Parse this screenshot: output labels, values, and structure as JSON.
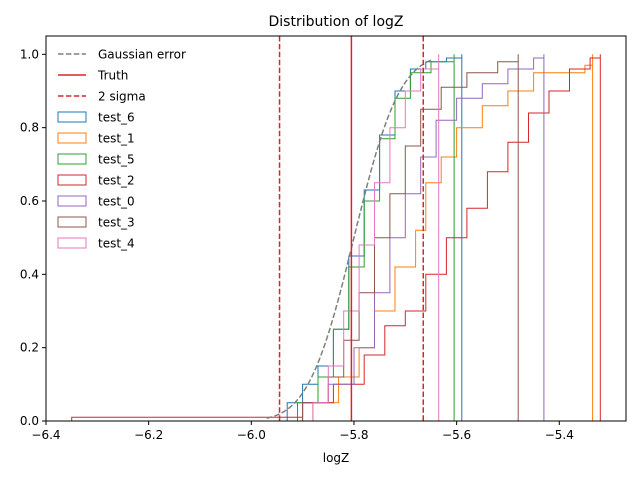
{
  "chart_data": {
    "type": "line",
    "title": "Distribution of logZ",
    "xlabel": "logZ",
    "ylabel": "",
    "xlim": [
      -6.4,
      -5.27
    ],
    "ylim": [
      0,
      1.05
    ],
    "xticks": [
      -6.4,
      -6.2,
      -6.0,
      -5.8,
      -5.6,
      -5.4
    ],
    "xtick_labels": [
      "−6.4",
      "−6.2",
      "−6.0",
      "−5.8",
      "−5.6",
      "−5.4"
    ],
    "yticks": [
      0.0,
      0.2,
      0.4,
      0.6,
      0.8,
      1.0
    ],
    "ytick_labels": [
      "0.0",
      "0.2",
      "0.4",
      "0.6",
      "0.8",
      "1.0"
    ],
    "legend_position": "top-left",
    "reference_lines": [
      {
        "name": "Truth",
        "x": -5.805,
        "color": "#d62728",
        "style": "solid"
      },
      {
        "name": "2 sigma",
        "x": -5.945,
        "color": "#d62728",
        "style": "dashed"
      },
      {
        "name": "2 sigma",
        "x": -5.665,
        "color": "#d62728",
        "style": "dashed"
      }
    ],
    "gaussian_error": {
      "name": "Gaussian error",
      "color": "#7f7f7f",
      "style": "dashed",
      "mean": -5.8,
      "sd": 0.07,
      "x_range": [
        -5.97,
        -5.65
      ]
    },
    "series": [
      {
        "name": "test_6",
        "color": "#1f77b4",
        "points": [
          [
            -5.97,
            0.0
          ],
          [
            -5.93,
            0.05
          ],
          [
            -5.9,
            0.1
          ],
          [
            -5.87,
            0.15
          ],
          [
            -5.84,
            0.25
          ],
          [
            -5.81,
            0.45
          ],
          [
            -5.78,
            0.63
          ],
          [
            -5.75,
            0.78
          ],
          [
            -5.72,
            0.9
          ],
          [
            -5.69,
            0.96
          ],
          [
            -5.66,
            0.98
          ],
          [
            -5.62,
            0.99
          ],
          [
            -5.59,
            1.0
          ]
        ]
      },
      {
        "name": "test_1",
        "color": "#ff7f0e",
        "points": [
          [
            -5.94,
            0.0
          ],
          [
            -5.88,
            0.05
          ],
          [
            -5.83,
            0.12
          ],
          [
            -5.79,
            0.2
          ],
          [
            -5.76,
            0.3
          ],
          [
            -5.72,
            0.42
          ],
          [
            -5.68,
            0.52
          ],
          [
            -5.66,
            0.65
          ],
          [
            -5.63,
            0.72
          ],
          [
            -5.6,
            0.8
          ],
          [
            -5.55,
            0.86
          ],
          [
            -5.5,
            0.9
          ],
          [
            -5.45,
            0.95
          ],
          [
            -5.35,
            0.97
          ],
          [
            -5.335,
            1.0
          ]
        ]
      },
      {
        "name": "test_5",
        "color": "#2ca02c",
        "points": [
          [
            -5.96,
            0.0
          ],
          [
            -5.91,
            0.05
          ],
          [
            -5.87,
            0.12
          ],
          [
            -5.84,
            0.25
          ],
          [
            -5.81,
            0.42
          ],
          [
            -5.78,
            0.6
          ],
          [
            -5.75,
            0.77
          ],
          [
            -5.72,
            0.88
          ],
          [
            -5.69,
            0.95
          ],
          [
            -5.65,
            0.98
          ],
          [
            -5.605,
            1.0
          ]
        ]
      },
      {
        "name": "test_2",
        "color": "#d62728",
        "points": [
          [
            -6.35,
            0.0
          ],
          [
            -6.35,
            0.01
          ],
          [
            -5.96,
            0.01
          ],
          [
            -5.9,
            0.05
          ],
          [
            -5.84,
            0.1
          ],
          [
            -5.78,
            0.18
          ],
          [
            -5.74,
            0.26
          ],
          [
            -5.7,
            0.3
          ],
          [
            -5.66,
            0.4
          ],
          [
            -5.62,
            0.5
          ],
          [
            -5.58,
            0.58
          ],
          [
            -5.54,
            0.68
          ],
          [
            -5.5,
            0.76
          ],
          [
            -5.46,
            0.84
          ],
          [
            -5.42,
            0.9
          ],
          [
            -5.38,
            0.96
          ],
          [
            -5.34,
            0.99
          ],
          [
            -5.32,
            1.0
          ]
        ]
      },
      {
        "name": "test_0",
        "color": "#9467bd",
        "points": [
          [
            -5.95,
            0.0
          ],
          [
            -5.9,
            0.05
          ],
          [
            -5.85,
            0.1
          ],
          [
            -5.8,
            0.2
          ],
          [
            -5.76,
            0.35
          ],
          [
            -5.73,
            0.5
          ],
          [
            -5.7,
            0.62
          ],
          [
            -5.67,
            0.72
          ],
          [
            -5.64,
            0.82
          ],
          [
            -5.6,
            0.88
          ],
          [
            -5.55,
            0.92
          ],
          [
            -5.5,
            0.96
          ],
          [
            -5.45,
            0.99
          ],
          [
            -5.43,
            1.0
          ]
        ]
      },
      {
        "name": "test_3",
        "color": "#8c564b",
        "points": [
          [
            -5.95,
            0.0
          ],
          [
            -5.9,
            0.05
          ],
          [
            -5.85,
            0.12
          ],
          [
            -5.82,
            0.22
          ],
          [
            -5.79,
            0.35
          ],
          [
            -5.76,
            0.5
          ],
          [
            -5.73,
            0.62
          ],
          [
            -5.7,
            0.75
          ],
          [
            -5.67,
            0.85
          ],
          [
            -5.63,
            0.91
          ],
          [
            -5.58,
            0.95
          ],
          [
            -5.52,
            0.98
          ],
          [
            -5.48,
            1.0
          ]
        ]
      },
      {
        "name": "test_4",
        "color": "#e377c2",
        "points": [
          [
            -5.92,
            0.0
          ],
          [
            -5.88,
            0.05
          ],
          [
            -5.85,
            0.15
          ],
          [
            -5.82,
            0.3
          ],
          [
            -5.79,
            0.48
          ],
          [
            -5.76,
            0.65
          ],
          [
            -5.73,
            0.8
          ],
          [
            -5.7,
            0.9
          ],
          [
            -5.67,
            0.96
          ],
          [
            -5.635,
            1.0
          ]
        ]
      }
    ]
  }
}
